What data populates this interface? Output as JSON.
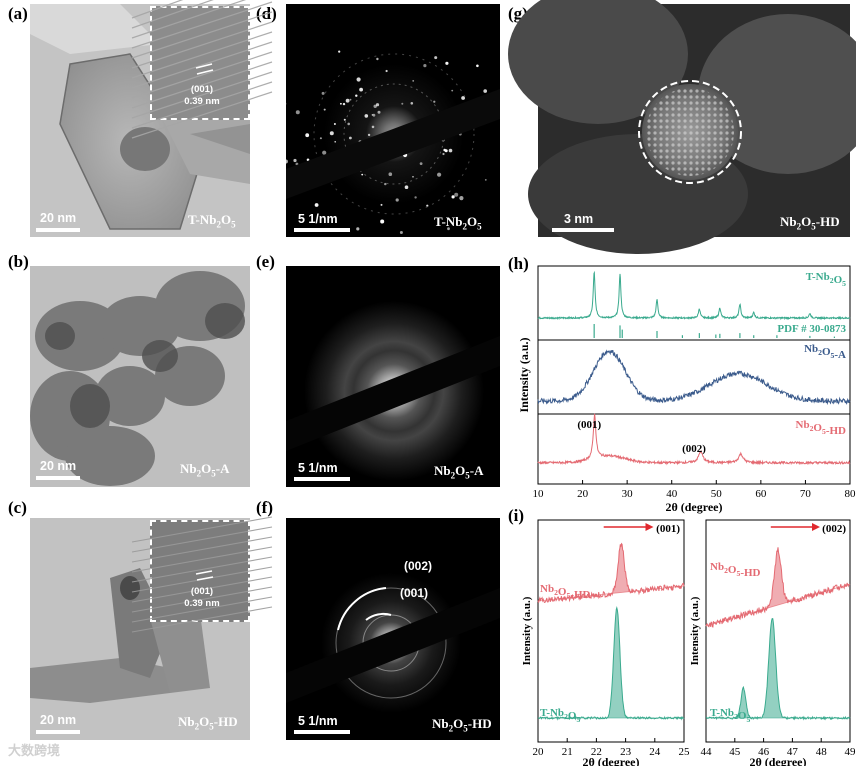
{
  "labels": {
    "a": "(a)",
    "b": "(b)",
    "c": "(c)",
    "d": "(d)",
    "e": "(e)",
    "f": "(f)",
    "g": "(g)",
    "h": "(h)",
    "i": "(i)"
  },
  "tem": {
    "a": {
      "scale": "20 nm",
      "caption": "T-Nb",
      "sub1": "2",
      "mid": "O",
      "sub2": "5",
      "inset_plane": "(001)",
      "inset_d": "0.39 nm"
    },
    "b": {
      "scale": "20 nm",
      "caption": "Nb",
      "sub1": "2",
      "mid": "O",
      "sub2": "5",
      "suffix": "-A"
    },
    "c": {
      "scale": "20 nm",
      "caption": "Nb",
      "sub1": "2",
      "mid": "O",
      "sub2": "5",
      "suffix": "-HD",
      "inset_plane": "(001)",
      "inset_d": "0.39 nm"
    }
  },
  "saed": {
    "d": {
      "scale": "5 1/nm",
      "caption": "T-Nb",
      "sub1": "2",
      "mid": "O",
      "sub2": "5"
    },
    "e": {
      "scale": "5 1/nm",
      "caption": "Nb",
      "sub1": "2",
      "mid": "O",
      "sub2": "5",
      "suffix": "-A"
    },
    "f": {
      "scale": "5 1/nm",
      "caption": "Nb",
      "sub1": "2",
      "mid": "O",
      "sub2": "5",
      "suffix": "-HD",
      "ring1": "(002)",
      "ring2": "(001)"
    }
  },
  "haadf": {
    "g": {
      "scale": "3 nm",
      "caption": "Nb",
      "sub1": "2",
      "mid": "O",
      "sub2": "5",
      "suffix": "-HD"
    }
  },
  "chart_data": [
    {
      "type": "line",
      "panel": "h",
      "xlabel": "2θ (degree)",
      "ylabel": "Intensity (a.u.)",
      "xlim": [
        10,
        80
      ],
      "xticks": [
        10,
        20,
        30,
        40,
        50,
        60,
        70,
        80
      ],
      "series": [
        {
          "name": "T-Nb2O5",
          "color": "#3aaa8e",
          "peaks": [
            [
              22.6,
              1.0
            ],
            [
              28.4,
              0.95
            ],
            [
              36.7,
              0.4
            ],
            [
              46.2,
              0.2
            ],
            [
              50.8,
              0.22
            ],
            [
              55.3,
              0.3
            ],
            [
              58.4,
              0.12
            ],
            [
              71.0,
              0.1
            ]
          ]
        },
        {
          "name": "PDF # 30-0873",
          "color": "#3aaa8e",
          "peaks": [
            [
              22.6,
              1.0
            ],
            [
              28.4,
              0.9
            ],
            [
              28.9,
              0.6
            ],
            [
              36.7,
              0.5
            ],
            [
              42.4,
              0.2
            ],
            [
              46.2,
              0.35
            ],
            [
              49.9,
              0.25
            ],
            [
              50.8,
              0.3
            ],
            [
              55.3,
              0.35
            ],
            [
              58.4,
              0.2
            ],
            [
              63.6,
              0.2
            ],
            [
              71.0,
              0.15
            ],
            [
              76.5,
              0.1
            ]
          ]
        },
        {
          "name": "Nb2O5-A",
          "color": "#3b5b8c",
          "humps": [
            [
              26,
              1.0
            ],
            [
              55,
              0.55
            ]
          ]
        },
        {
          "name": "Nb2O5-HD",
          "color": "#e46a72",
          "peaks": [
            [
              22.7,
              1.0
            ],
            [
              46.5,
              0.25
            ],
            [
              55.5,
              0.2
            ]
          ],
          "annotations": [
            "(001)",
            "(002)"
          ]
        }
      ]
    },
    {
      "type": "area",
      "panel": "i-left",
      "xlabel": "2θ (degree)",
      "ylabel": "Intensity (a.u.)",
      "xlim": [
        20,
        25
      ],
      "xticks": [
        20,
        21,
        22,
        23,
        24,
        25
      ],
      "annotation": "(001)",
      "series": [
        {
          "name": "Nb2O5-HD",
          "color": "#e46a72",
          "peak_center": 22.85
        },
        {
          "name": "T-Nb2O5",
          "color": "#3aaa8e",
          "peak_center": 22.7
        }
      ]
    },
    {
      "type": "area",
      "panel": "i-right",
      "xlabel": "2θ (degree)",
      "ylabel": "Intensity (a.u.)",
      "xlim": [
        44,
        49
      ],
      "xticks": [
        44,
        45,
        46,
        47,
        48,
        49
      ],
      "annotation": "(002)",
      "series": [
        {
          "name": "Nb2O5-HD",
          "color": "#e46a72",
          "peak_center": 46.5
        },
        {
          "name": "T-Nb2O5",
          "color": "#3aaa8e",
          "peak_center": 46.3,
          "shoulder": 45.3
        }
      ]
    }
  ],
  "watermark": "大数跨境"
}
